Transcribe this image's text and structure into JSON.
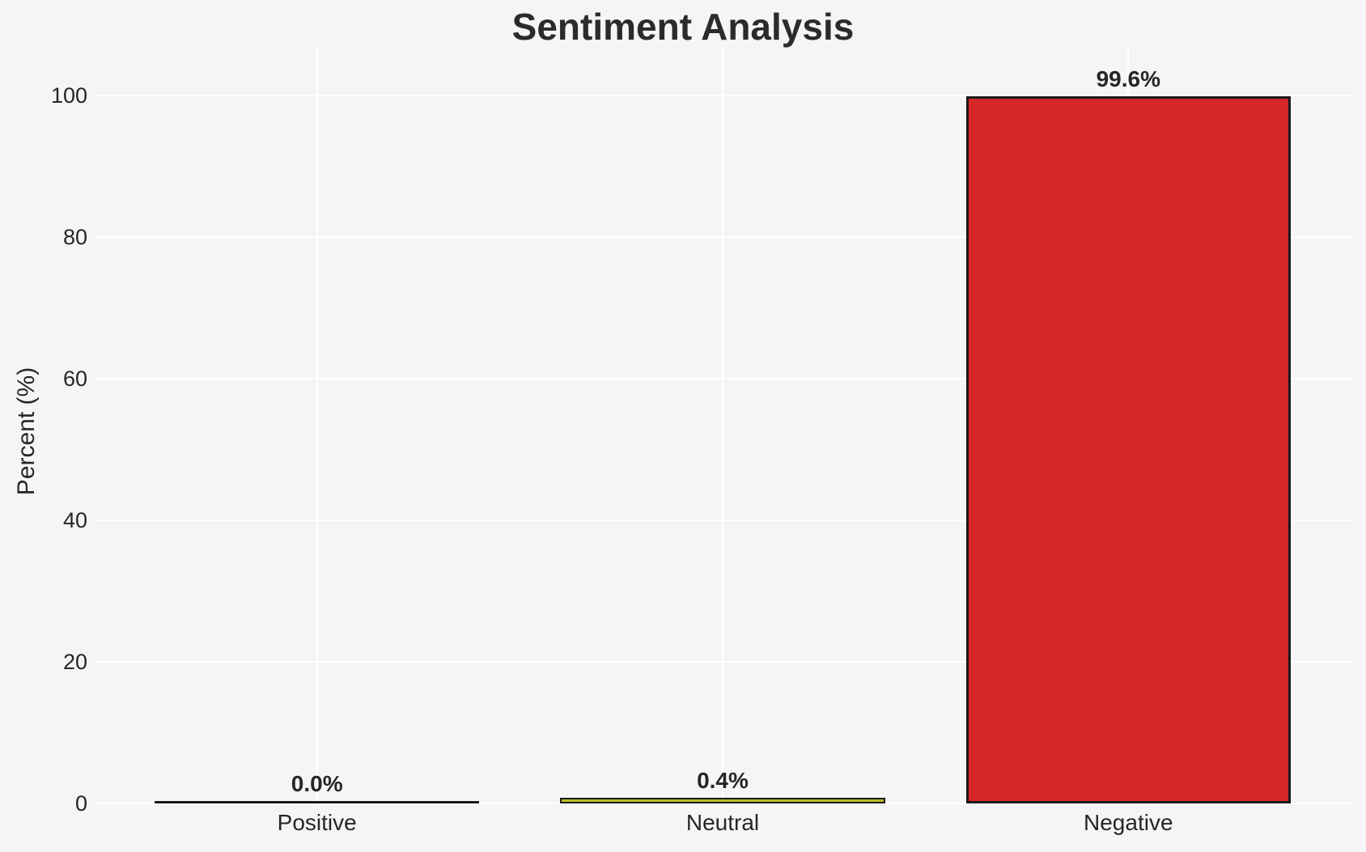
{
  "chart_data": {
    "type": "bar",
    "title": "Sentiment Analysis",
    "xlabel": "",
    "ylabel": "Percent (%)",
    "categories": [
      "Positive",
      "Neutral",
      "Negative"
    ],
    "values": [
      0.0,
      0.4,
      99.6
    ],
    "bar_labels": [
      "0.0%",
      "0.4%",
      "99.6%"
    ],
    "yticks": [
      0,
      20,
      40,
      60,
      80,
      100
    ],
    "ylim": [
      0,
      106.9
    ],
    "xlim": [
      -0.55,
      2.55
    ],
    "bar_width": 0.8,
    "grid": true,
    "legend": false,
    "colors": {
      "background": "#f5f5f6",
      "gridline": "#ffffff",
      "bar_fills": [
        null,
        "#bcbd22",
        "#d62728"
      ],
      "bar_edge": "#1a1a1a",
      "text": "#262626"
    }
  }
}
